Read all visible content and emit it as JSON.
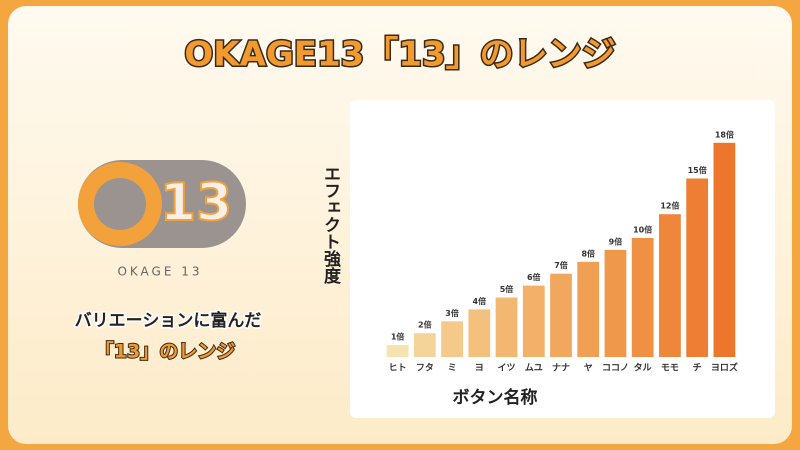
{
  "slide": {
    "title": "OKAGE13「13」のレンジ",
    "logo_number": "13",
    "logo_caption": "OKAGE 13",
    "caption_line1": "バリエーションに富んだ",
    "caption_line2": "「13」のレンジ"
  },
  "chart_data": {
    "type": "bar",
    "categories": [
      "ヒト",
      "フタ",
      "ミ",
      "ヨ",
      "イツ",
      "ムユ",
      "ナナ",
      "ヤ",
      "ココノ",
      "タル",
      "モモ",
      "チ",
      "ヨロズ"
    ],
    "values": [
      1,
      2,
      3,
      4,
      5,
      6,
      7,
      8,
      9,
      10,
      12,
      15,
      18
    ],
    "value_labels": [
      "1倍",
      "2倍",
      "3倍",
      "4倍",
      "5倍",
      "6倍",
      "7倍",
      "8倍",
      "9倍",
      "10倍",
      "12倍",
      "15倍",
      "18倍"
    ],
    "colors": [
      "#f6e3b0",
      "#f5d49a",
      "#f4c98a",
      "#f3c07d",
      "#f2b872",
      "#f2b068",
      "#f1a85e",
      "#f0a055",
      "#ef984c",
      "#ef9044",
      "#ee873b",
      "#ed7e33",
      "#ec762c"
    ],
    "xlabel": "ボタン名称",
    "ylabel": "エフェクト強度",
    "ylim": [
      0,
      20
    ]
  }
}
